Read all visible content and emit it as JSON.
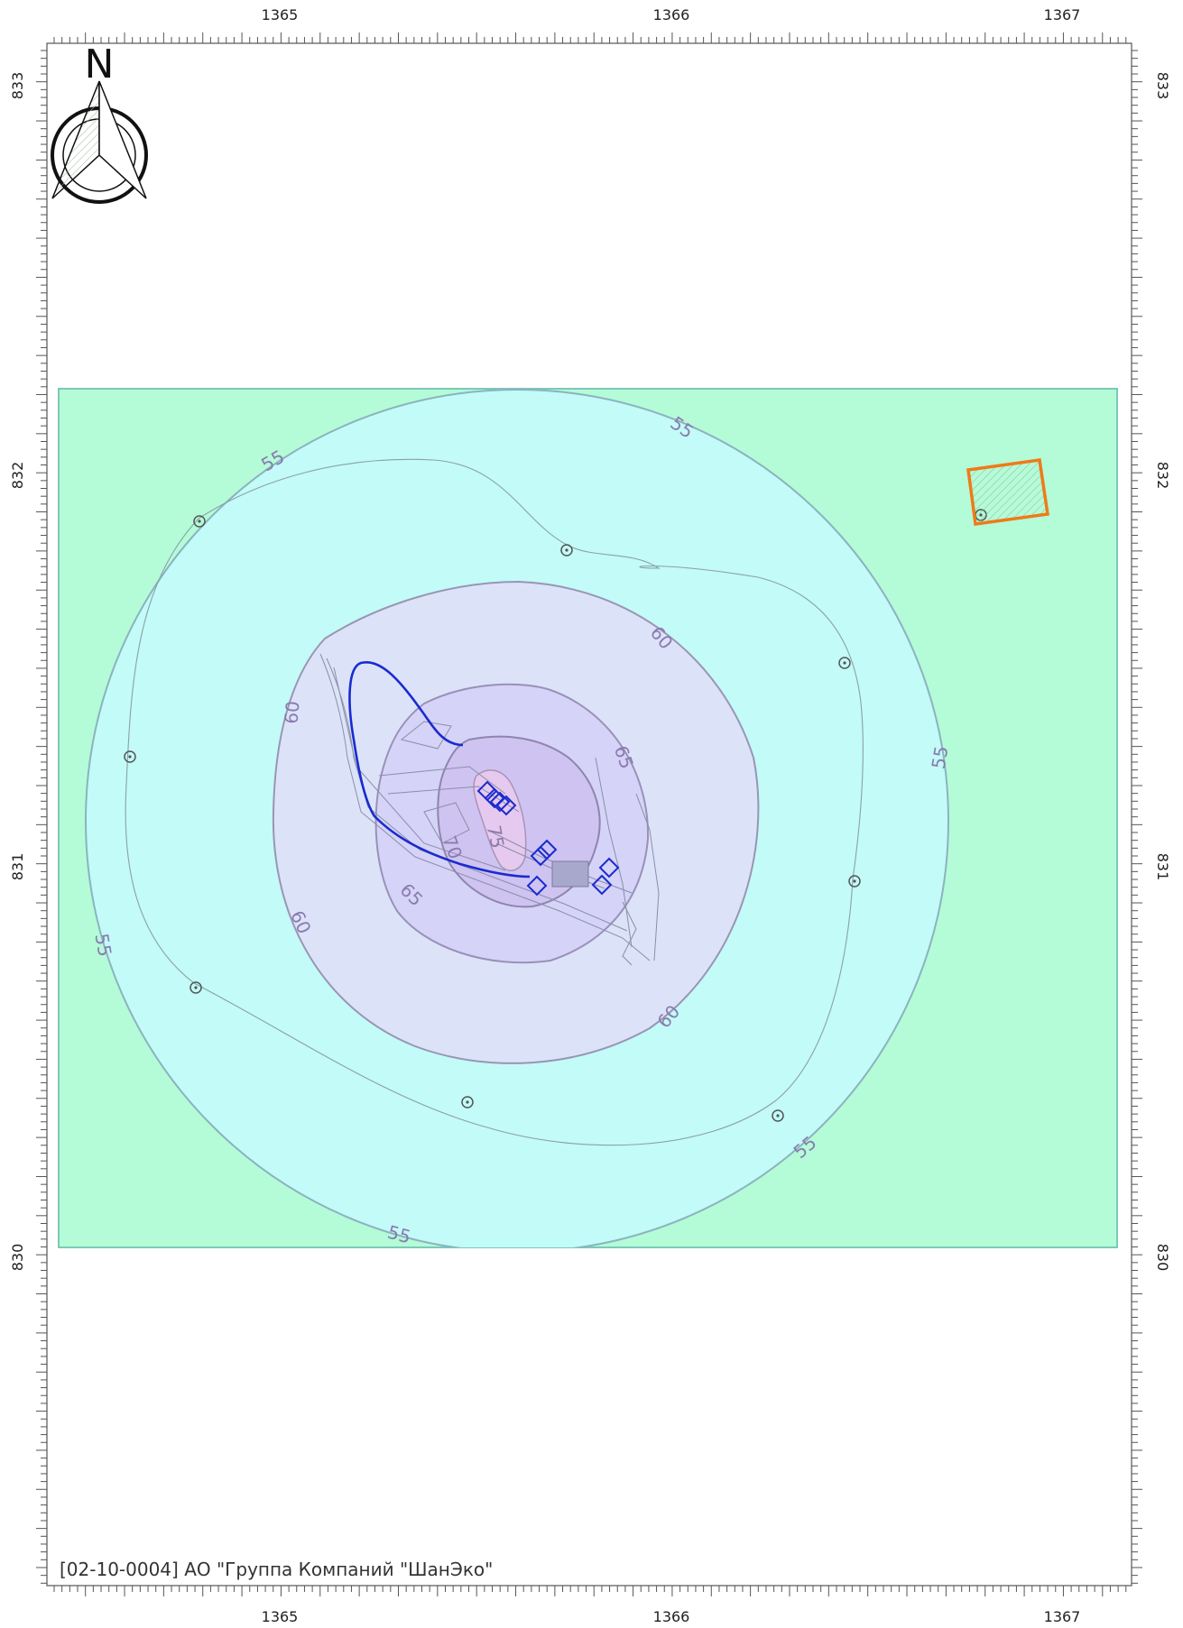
{
  "map": {
    "north_label": "N",
    "x_ticks": [
      "1365",
      "1366",
      "1367"
    ],
    "y_ticks": [
      "833",
      "832",
      "831",
      "830"
    ],
    "x_range": [
      1364.42,
      1367.18
    ],
    "y_range": [
      829.22,
      833.1
    ],
    "contour_levels": [
      "55",
      "60",
      "65",
      "70",
      "75"
    ],
    "contour_labels": [
      {
        "text": "55"
      },
      {
        "text": "55"
      },
      {
        "text": "55"
      },
      {
        "text": "55"
      },
      {
        "text": "55"
      },
      {
        "text": "55"
      },
      {
        "text": "60"
      },
      {
        "text": "60"
      },
      {
        "text": "60"
      },
      {
        "text": "60"
      },
      {
        "text": "65"
      },
      {
        "text": "65"
      },
      {
        "text": "70"
      },
      {
        "text": "75"
      }
    ],
    "colors": {
      "outer_zone": "#b3fcd7",
      "zone_55": "#c2fbf7",
      "zone_60": "#dce3f8",
      "zone_65": "#d5d3f7",
      "zone_70": "#cfc3f1",
      "zone_75": "#e6c9ee",
      "contour_line": "#8d8aa8",
      "boundary_line": "#1a2bd0",
      "source_marker": "#1a2bd0",
      "object_frame": "#f07a18",
      "receptor_point": "#555555"
    },
    "icons": [
      "north-arrow-icon",
      "receptor-point-icon",
      "source-marker-icon"
    ]
  },
  "footer": {
    "caption": "[02-10-0004] АО \"Группа Компаний \"ШанЭко\""
  }
}
